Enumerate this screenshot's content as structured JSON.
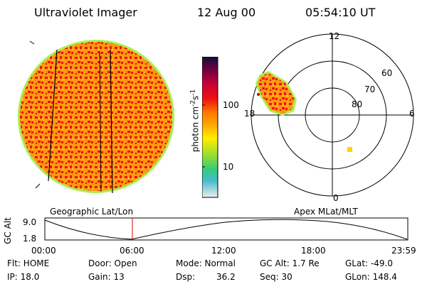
{
  "header": {
    "instrument": "Ultraviolet Imager",
    "date": "12 Aug 00",
    "time": "05:54:10 UT"
  },
  "colorbar": {
    "unit_label": "photon cm",
    "exp1": "-2",
    "mid": "s",
    "exp2": "-1",
    "ticks": [
      "100",
      "10"
    ]
  },
  "polar_plot": {
    "mlt_labels": [
      "12",
      "18",
      "6",
      "0"
    ],
    "mlat_labels": [
      "60",
      "70",
      "80"
    ]
  },
  "panel_labels": {
    "left": "Geographic Lat/Lon",
    "right": "Apex MLat/MLT"
  },
  "altitude_panel": {
    "axis_label": "GC Alt",
    "y_ticks": [
      "9.0",
      "1.8"
    ],
    "time_ticks": [
      "00:00",
      "06:00",
      "12:00",
      "18:00",
      "23:59"
    ]
  },
  "status": {
    "flt": "Flt: HOME",
    "ip": "IP: 18.0",
    "door": "Door: Open",
    "gain": "Gain: 13",
    "mode": "Mode: Normal",
    "dsp_label": "Dsp:",
    "dsp_value": "36.2",
    "gc_alt": "GC Alt: 1.7 Re",
    "seq": "Seq: 30",
    "glat": "GLat: -49.0",
    "glon": "GLon: 148.4"
  },
  "colors": {
    "image_red": "#ee1111",
    "image_orange": "#ffa500",
    "image_edge": "#aaee55",
    "marker_red": "#cc0000",
    "patch_yellow": "#ffd400"
  }
}
